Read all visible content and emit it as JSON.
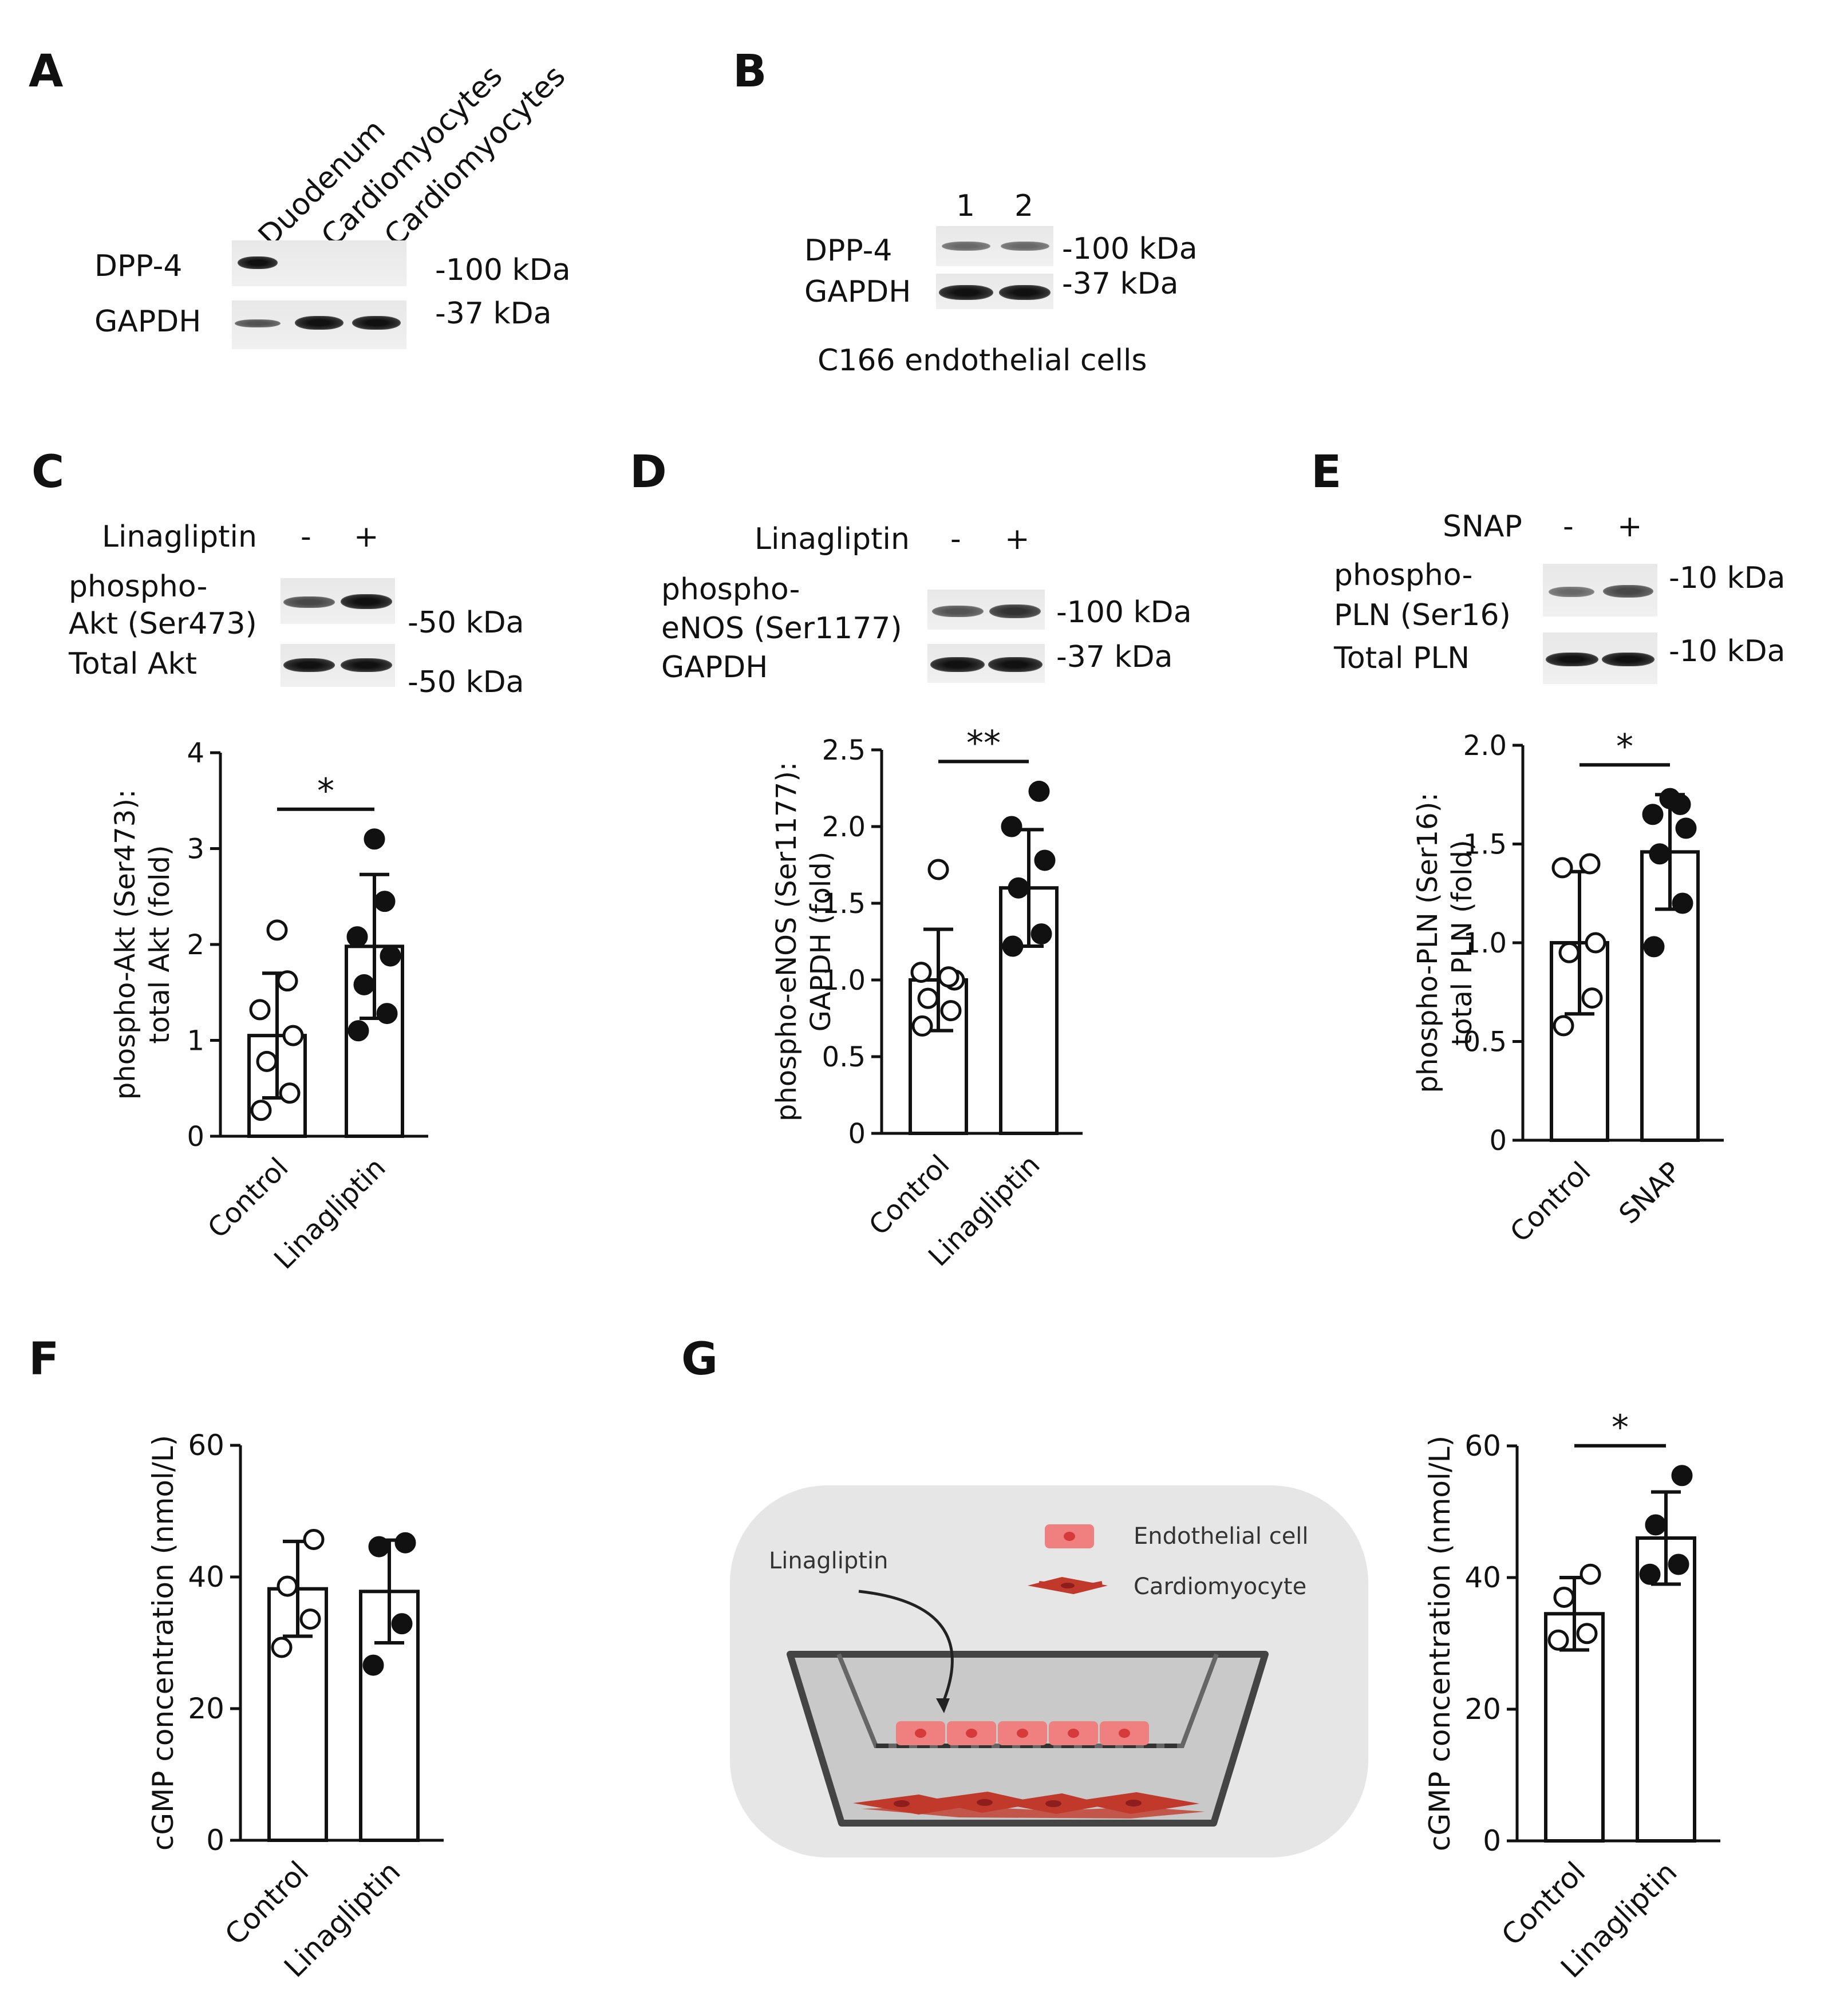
{
  "panels": {
    "A": {
      "label": "A",
      "lane_labels": [
        "Duodenum",
        "Cardiomyocytes",
        "Cardiomyocytes"
      ],
      "rows": [
        {
          "protein": "DPP-4",
          "kda": "-100 kDa"
        },
        {
          "protein": "GAPDH",
          "kda": "-37 kDa"
        }
      ]
    },
    "B": {
      "label": "B",
      "lane_labels": [
        "1",
        "2"
      ],
      "rows": [
        {
          "protein": "DPP-4",
          "kda": "-100 kDa"
        },
        {
          "protein": "GAPDH",
          "kda": "-37 kDa"
        }
      ],
      "caption": "C166 endothelial cells"
    },
    "C": {
      "label": "C",
      "treatment": "Linagliptin",
      "signs": [
        "-",
        "+"
      ],
      "rows": [
        {
          "protein_line1": "phospho-",
          "protein_line2": "Akt (Ser473)",
          "kda": "-50 kDa"
        },
        {
          "protein": "Total Akt",
          "kda": "-50 kDa"
        }
      ]
    },
    "D": {
      "label": "D",
      "treatment": "Linagliptin",
      "signs": [
        "-",
        "+"
      ],
      "rows": [
        {
          "protein_line1": "phospho-",
          "protein_line2": "eNOS (Ser1177)",
          "kda": "-100 kDa"
        },
        {
          "protein": "GAPDH",
          "kda": "-37 kDa"
        }
      ]
    },
    "E": {
      "label": "E",
      "treatment": "SNAP",
      "signs": [
        "-",
        "+"
      ],
      "rows": [
        {
          "protein_line1": "phospho-",
          "protein_line2": "PLN (Ser16)",
          "kda": "-10 kDa"
        },
        {
          "protein": "Total PLN",
          "kda": "-10 kDa"
        }
      ]
    },
    "F": {
      "label": "F"
    },
    "G": {
      "label": "G",
      "diagram": {
        "legend_endothelial": "Endothelial cell",
        "legend_cardiomyocyte": "Cardiomyocyte",
        "drug_label": "Linagliptin"
      }
    }
  },
  "colors": {
    "endothelial": "#f08080",
    "cardiomyocyte": "#c0392b",
    "background": "#e6e6e6"
  },
  "chart_data": [
    {
      "id": "C",
      "type": "bar",
      "categories": [
        "Control",
        "Linagliptin"
      ],
      "values": [
        1.05,
        1.98
      ],
      "sd": [
        0.65,
        0.75
      ],
      "points": [
        [
          0.27,
          0.45,
          0.78,
          1.05,
          1.32,
          1.62,
          2.15
        ],
        [
          1.1,
          1.28,
          1.58,
          1.88,
          2.08,
          2.45,
          3.1
        ]
      ],
      "ylabel_line1": "phospho-Akt (Ser473):",
      "ylabel_line2": "total Akt (fold)",
      "ylim": [
        0,
        4
      ],
      "yticks": [
        "0",
        "1",
        "2",
        "3",
        "4"
      ],
      "significance": "*"
    },
    {
      "id": "D",
      "type": "bar",
      "categories": [
        "Control",
        "Linagliptin"
      ],
      "values": [
        1.0,
        1.6
      ],
      "sd": [
        0.33,
        0.38
      ],
      "points": [
        [
          0.7,
          0.8,
          0.88,
          1.0,
          1.05,
          1.02,
          1.72
        ],
        [
          1.22,
          1.3,
          1.6,
          1.78,
          2.0,
          2.23
        ]
      ],
      "ylabel_line1": "phospho-eNOS (Ser1177):",
      "ylabel_line2": "GAPDH (fold)",
      "ylim": [
        0,
        2.5
      ],
      "yticks": [
        "0",
        "0.5",
        "1.0",
        "1.5",
        "2.0",
        "2.5"
      ],
      "significance": "**"
    },
    {
      "id": "E",
      "type": "bar",
      "categories": [
        "Control",
        "SNAP"
      ],
      "values": [
        1.0,
        1.46
      ],
      "sd": [
        0.36,
        0.29
      ],
      "points": [
        [
          0.58,
          0.72,
          0.95,
          1.0,
          1.38,
          1.4
        ],
        [
          0.98,
          1.2,
          1.45,
          1.58,
          1.65,
          1.7,
          1.73
        ]
      ],
      "ylabel_line1": "phospho-PLN (Ser16):",
      "ylabel_line2": "total PLN (fold)",
      "ylim": [
        0,
        2.0
      ],
      "yticks": [
        "0",
        "0.5",
        "1.0",
        "1.5",
        "2.0"
      ],
      "significance": "*"
    },
    {
      "id": "F",
      "type": "bar",
      "categories": [
        "Control",
        "Linagliptin"
      ],
      "values": [
        38.2,
        37.8
      ],
      "sd": [
        7.2,
        7.8
      ],
      "points": [
        [
          29.3,
          33.6,
          38.6,
          45.7
        ],
        [
          26.6,
          32.9,
          44.6,
          45.2
        ]
      ],
      "ylabel_line1": "cGMP concentration (nmol/L)",
      "ylabel_line2": "",
      "ylim": [
        0,
        60
      ],
      "yticks": [
        "0",
        "20",
        "40",
        "60"
      ],
      "significance": ""
    },
    {
      "id": "G",
      "type": "bar",
      "categories": [
        "Control",
        "Linagliptin"
      ],
      "values": [
        34.5,
        46.0
      ],
      "sd": [
        5.5,
        7.0
      ],
      "points": [
        [
          30.5,
          31.5,
          37.0,
          40.5
        ],
        [
          40.5,
          42.0,
          48.0,
          55.5
        ]
      ],
      "ylabel_line1": "cGMP concentration (nmol/L)",
      "ylabel_line2": "",
      "ylim": [
        0,
        60
      ],
      "yticks": [
        "0",
        "20",
        "40",
        "60"
      ],
      "significance": "*"
    }
  ]
}
